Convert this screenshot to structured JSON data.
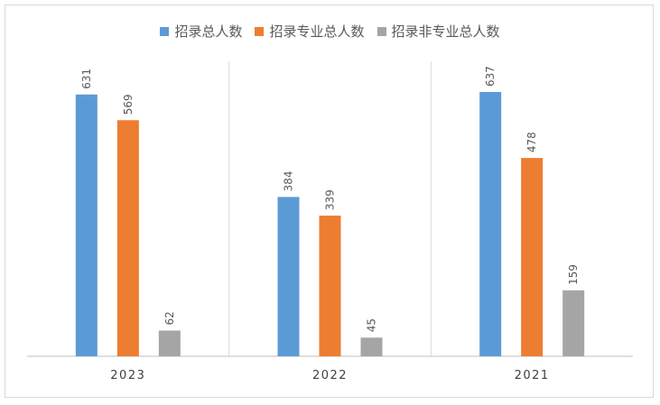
{
  "chart_data": {
    "type": "bar",
    "categories": [
      "2023",
      "2022",
      "2021"
    ],
    "series": [
      {
        "name": "招录总人数",
        "values": [
          631,
          384,
          637
        ],
        "color": "#5b9bd5"
      },
      {
        "name": "招录专业总人数",
        "values": [
          569,
          339,
          478
        ],
        "color": "#ed7d31"
      },
      {
        "name": "招录非专业总人数",
        "values": [
          62,
          45,
          159
        ],
        "color": "#a5a5a5"
      }
    ],
    "ylim": [
      0,
      700
    ],
    "data_labels": true,
    "legend": "top",
    "grid": false
  }
}
